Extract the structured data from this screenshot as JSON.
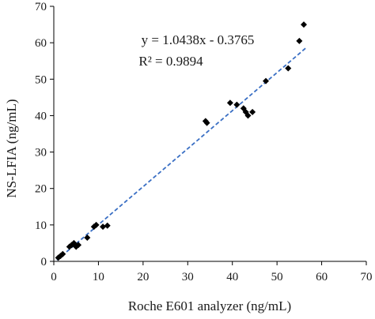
{
  "chart_data": {
    "type": "scatter",
    "title": "",
    "xlabel": "Roche E601 analyzer  (ng/mL)",
    "ylabel": "NS-LFIA  (ng/mL)",
    "xlim": [
      0,
      70
    ],
    "ylim": [
      0,
      70
    ],
    "xticks": [
      0,
      10,
      20,
      30,
      40,
      50,
      60,
      70
    ],
    "yticks": [
      0,
      10,
      20,
      30,
      40,
      50,
      60,
      70
    ],
    "grid": false,
    "legend": "none",
    "series": [
      {
        "marker": "diamond",
        "color": "#000000",
        "points": [
          [
            1.0,
            1.0
          ],
          [
            1.5,
            1.5
          ],
          [
            2.0,
            2.0
          ],
          [
            3.5,
            4.0
          ],
          [
            4.0,
            4.5
          ],
          [
            4.5,
            5.0
          ],
          [
            5.0,
            4.0
          ],
          [
            5.5,
            4.5
          ],
          [
            7.5,
            6.5
          ],
          [
            9.0,
            9.5
          ],
          [
            9.5,
            10.0
          ],
          [
            11.0,
            9.5
          ],
          [
            12.0,
            9.8
          ],
          [
            34.0,
            38.5
          ],
          [
            34.3,
            38.0
          ],
          [
            39.5,
            43.5
          ],
          [
            41.0,
            43.0
          ],
          [
            42.5,
            42.0
          ],
          [
            43.0,
            41.0
          ],
          [
            43.5,
            40.0
          ],
          [
            44.5,
            41.0
          ],
          [
            47.5,
            49.5
          ],
          [
            52.5,
            53.0
          ],
          [
            55.0,
            60.5
          ],
          [
            56.0,
            65.0
          ]
        ]
      }
    ],
    "trendline": {
      "style": "dashed",
      "color": "#3a6fc4",
      "slope": 1.0438,
      "intercept": -0.3765,
      "x_range": [
        0.7,
        56.5
      ]
    },
    "annotations": {
      "equation": "y = 1.0438x - 0.3765",
      "r_squared": "R² = 0.9894"
    }
  }
}
